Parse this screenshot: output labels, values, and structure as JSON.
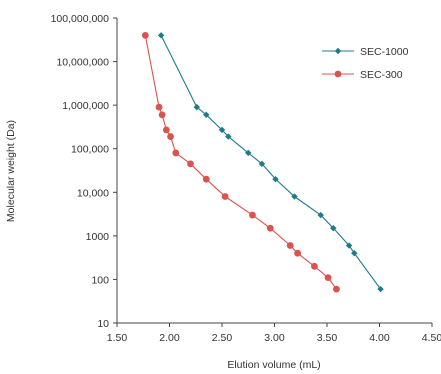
{
  "chart_data": {
    "type": "scatter",
    "xlabel": "Elution volume (mL)",
    "ylabel": "Molecular weight (Da)",
    "xlim": [
      1.5,
      4.5
    ],
    "ylim": [
      10,
      100000000
    ],
    "y_scale": "log",
    "grid": false,
    "legend_position": "top-right",
    "x_ticks": [
      "1.50",
      "2.00",
      "2.50",
      "3.00",
      "3.50",
      "4.00",
      "4.50"
    ],
    "y_ticks": [
      "10",
      "100",
      "1000",
      "10,000",
      "100,000",
      "1,000,000",
      "10,000,000",
      "100,000,000"
    ],
    "series": [
      {
        "name": "SEC-1000",
        "color": "#1f7a8c",
        "marker": "diamond",
        "points": [
          [
            1.92,
            40000000
          ],
          [
            2.26,
            900000
          ],
          [
            2.35,
            600000
          ],
          [
            2.5,
            270000
          ],
          [
            2.56,
            190000
          ],
          [
            2.75,
            80000
          ],
          [
            2.88,
            45000
          ],
          [
            3.01,
            20000
          ],
          [
            3.19,
            8000
          ],
          [
            3.44,
            3000
          ],
          [
            3.56,
            1500
          ],
          [
            3.71,
            600
          ],
          [
            3.76,
            400
          ],
          [
            4.01,
            60
          ]
        ]
      },
      {
        "name": "SEC-300",
        "color": "#d9534f",
        "marker": "circle",
        "points": [
          [
            1.77,
            40000000
          ],
          [
            1.9,
            900000
          ],
          [
            1.93,
            600000
          ],
          [
            1.97,
            270000
          ],
          [
            2.01,
            190000
          ],
          [
            2.06,
            80000
          ],
          [
            2.2,
            45000
          ],
          [
            2.35,
            20000
          ],
          [
            2.53,
            8000
          ],
          [
            2.79,
            3000
          ],
          [
            2.96,
            1500
          ],
          [
            3.15,
            600
          ],
          [
            3.22,
            400
          ],
          [
            3.38,
            200
          ],
          [
            3.51,
            110
          ],
          [
            3.59,
            60
          ]
        ]
      }
    ]
  }
}
